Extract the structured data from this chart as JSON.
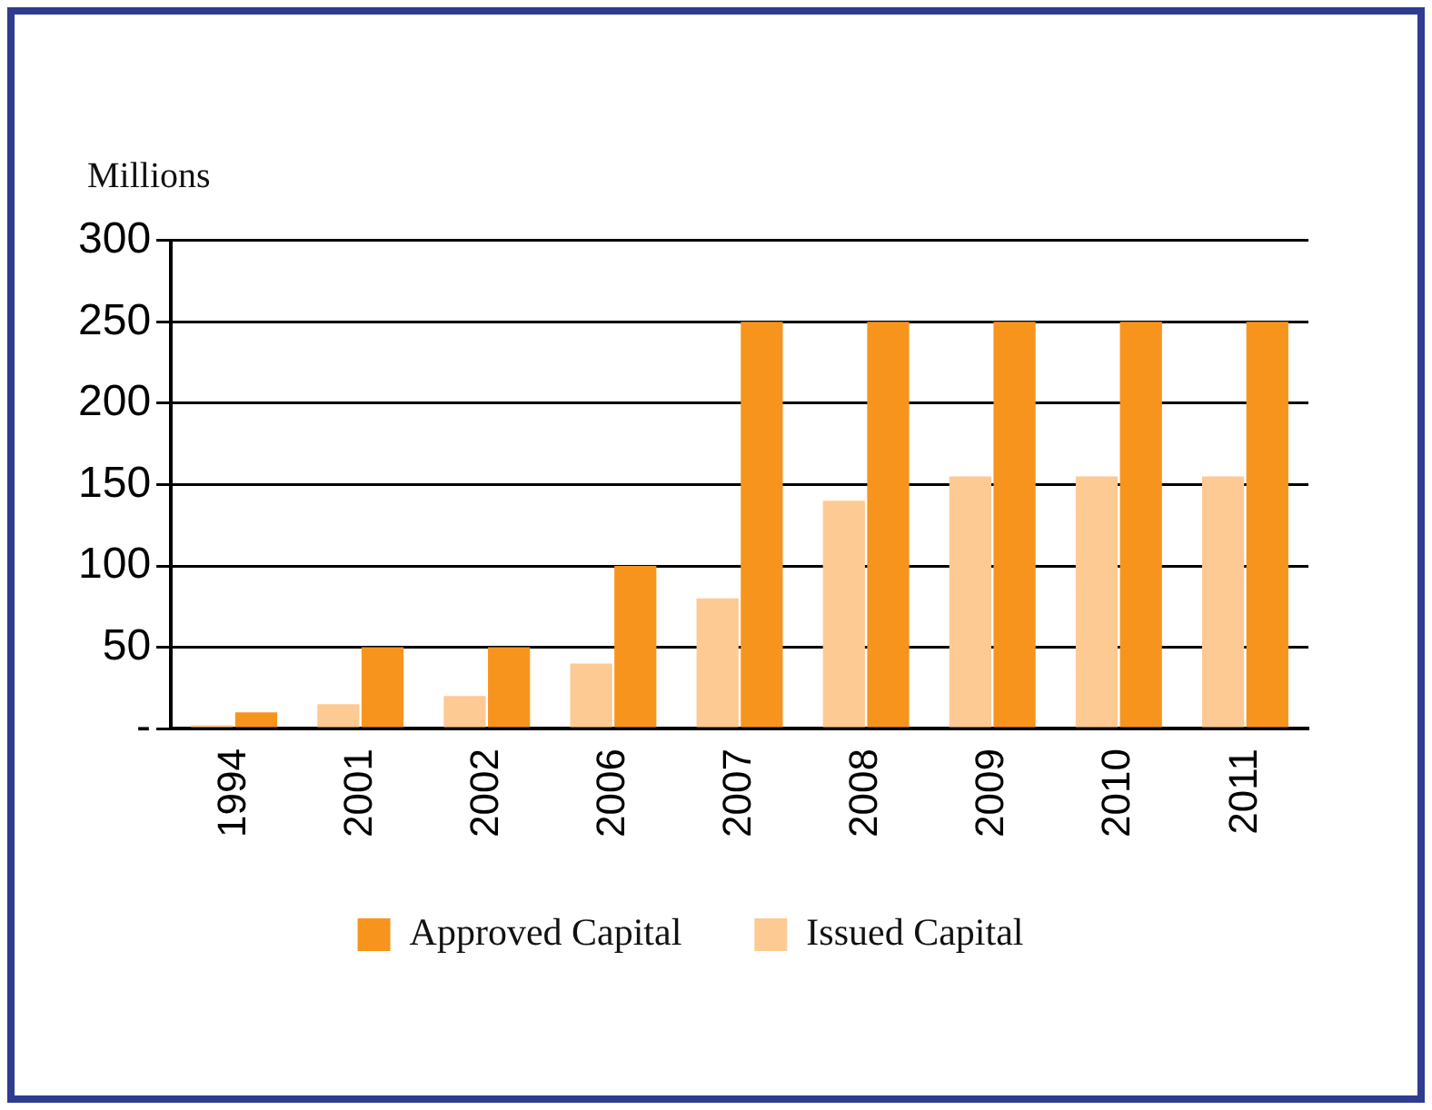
{
  "chart_data": {
    "type": "bar",
    "ylabel": "Millions",
    "categories": [
      "1994",
      "2001",
      "2002",
      "2006",
      "2007",
      "2008",
      "2009",
      "2010",
      "2011"
    ],
    "series": [
      {
        "name": "Issued Capital",
        "color": "#fdca94",
        "values": [
          2,
          15,
          20,
          40,
          80,
          140,
          155,
          155,
          155
        ]
      },
      {
        "name": "Approved Capital",
        "color": "#f7941d",
        "values": [
          10,
          50,
          50,
          100,
          250,
          250,
          250,
          250,
          250
        ]
      }
    ],
    "ylim": [
      0,
      300
    ],
    "yticks": [
      {
        "value": 0,
        "label": "-"
      },
      50,
      100,
      150,
      200,
      250,
      300
    ],
    "grid": "y",
    "legend": "bottom"
  }
}
